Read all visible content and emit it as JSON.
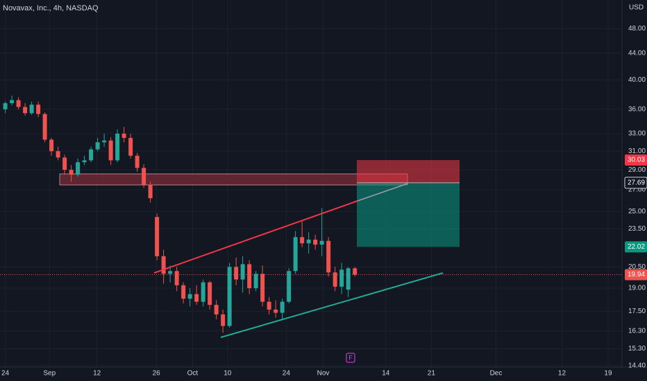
{
  "chart_data": {
    "type": "candlestick",
    "title": "Novavax, Inc., 4h, NASDAQ",
    "currency": "USD",
    "event_marker": "F",
    "log": true,
    "up_color": "#26a69a",
    "down_color": "#ef5350",
    "ylim": [
      53.2,
      14.4
    ],
    "yticks": [
      {
        "value": 48,
        "label": "48.00"
      },
      {
        "value": 44,
        "label": "44.00"
      },
      {
        "value": 40,
        "label": "40.00"
      },
      {
        "value": 36,
        "label": "36.00"
      },
      {
        "value": 33,
        "label": "33.00"
      },
      {
        "value": 31,
        "label": "31.00"
      },
      {
        "value": 29,
        "label": "29.00"
      },
      {
        "value": 27,
        "label": "27.00"
      },
      {
        "value": 25,
        "label": "25.00"
      },
      {
        "value": 23.5,
        "label": "23.50"
      },
      {
        "value": 20.5,
        "label": "20.50"
      },
      {
        "value": 19,
        "label": "19.00"
      },
      {
        "value": 17.5,
        "label": "17.50"
      },
      {
        "value": 16.3,
        "label": "16.30"
      },
      {
        "value": 15.3,
        "label": "15.30"
      },
      {
        "value": 14.4,
        "label": "14.40"
      }
    ],
    "xlim": [
      -0.8,
      93.4
    ],
    "xticks": [
      {
        "value": 0,
        "label": "24"
      },
      {
        "value": 6.7,
        "label": "Sep"
      },
      {
        "value": 13.9,
        "label": "12"
      },
      {
        "value": 22.9,
        "label": "26"
      },
      {
        "value": 28.4,
        "label": "Oct"
      },
      {
        "value": 33.7,
        "label": "10"
      },
      {
        "value": 42.6,
        "label": "24"
      },
      {
        "value": 48.2,
        "label": "Nov"
      },
      {
        "value": 57.7,
        "label": "14"
      },
      {
        "value": 64.6,
        "label": "21"
      },
      {
        "value": 74.4,
        "label": "Dec"
      },
      {
        "value": 84.4,
        "label": "12"
      },
      {
        "value": 91.4,
        "label": "19"
      }
    ],
    "open": [
      36,
      36.8,
      37.2,
      36.3,
      35.5,
      36.6,
      35.4,
      32.3,
      31,
      30.3,
      29,
      28.5,
      29.8,
      30,
      31.2,
      32,
      32.2,
      30,
      33,
      32.5,
      30.5,
      29.2,
      27.5,
      24.5,
      21.3,
      20,
      20.2,
      19.2,
      18.3,
      18.6,
      18.1,
      19.4,
      17.9,
      17.3,
      16.6,
      20.5,
      19.6,
      20.7,
      19,
      20,
      18.1,
      17.6,
      17.4,
      18.1,
      20.2,
      22.8,
      22.3,
      22.6,
      22.2,
      22.5,
      20.1,
      19.1,
      18.9,
      20.4
    ],
    "high": [
      37,
      37.8,
      37.6,
      36.8,
      37,
      37,
      35.6,
      32.5,
      31.5,
      30.6,
      29.5,
      30.2,
      30.5,
      31.5,
      32.5,
      33,
      32.6,
      33.5,
      33.8,
      33,
      30.8,
      29.6,
      27.8,
      24.8,
      21.8,
      20.6,
      20.5,
      19.4,
      19,
      19.2,
      19.6,
      19.5,
      18.2,
      17.6,
      20.8,
      21.2,
      21.3,
      21,
      20.2,
      20.6,
      18.4,
      18.2,
      18.3,
      20.4,
      23.3,
      24.2,
      23.2,
      23,
      25.3,
      22.8,
      20.5,
      20.8,
      20.5,
      20.5
    ],
    "low": [
      35.5,
      36.5,
      36,
      35.2,
      35.3,
      35,
      32,
      30.5,
      30,
      28.5,
      27.8,
      28.3,
      29.5,
      29.8,
      31,
      31.5,
      29.5,
      29.8,
      32,
      30.2,
      28.8,
      27.2,
      25.8,
      21,
      19.3,
      19.4,
      18.8,
      18,
      17.8,
      17.9,
      17.8,
      17.6,
      17,
      16.2,
      16.5,
      19.2,
      18.7,
      18.6,
      18.8,
      17.8,
      17.3,
      17.1,
      17,
      18,
      20,
      22,
      21.5,
      21.8,
      21.3,
      19.8,
      18.8,
      18.6,
      18.4,
      19.8
    ],
    "close": [
      36.8,
      37.2,
      36.3,
      35.5,
      36.6,
      35.4,
      32.3,
      31,
      30.3,
      29,
      28.5,
      29.8,
      30,
      31.2,
      32,
      32.2,
      30,
      33,
      32.5,
      30.5,
      29.2,
      27.5,
      26.2,
      21.3,
      20,
      20.2,
      19.2,
      18.3,
      18.6,
      18.1,
      19.4,
      17.9,
      17.3,
      16.6,
      20.5,
      19.6,
      20.7,
      19,
      20,
      18.1,
      17.6,
      17.4,
      18.1,
      20.2,
      22.8,
      22.3,
      22.6,
      22.2,
      22.5,
      20.1,
      19.1,
      20.3,
      20.4,
      19.94
    ],
    "position": {
      "stop": 30.03,
      "entry": 27.69,
      "target": 22.02
    },
    "last_price": 19.94
  }
}
